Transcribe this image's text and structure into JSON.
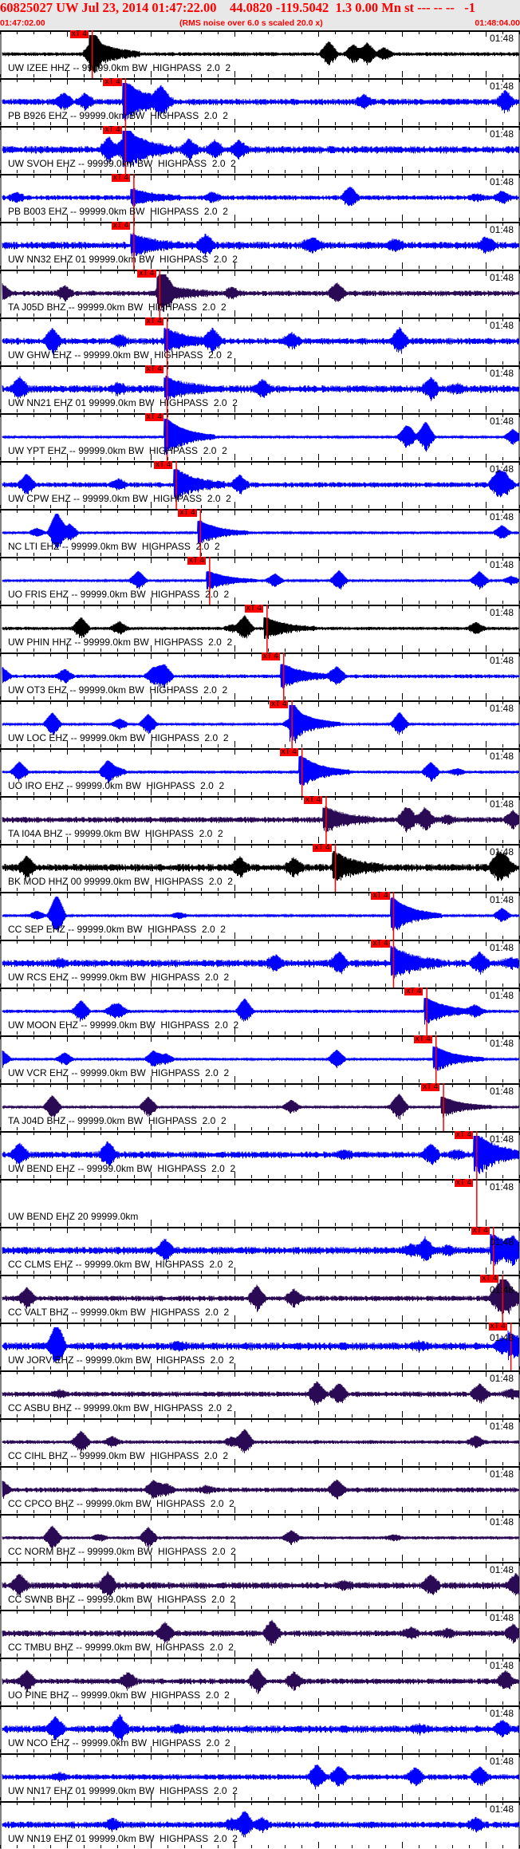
{
  "header": {
    "title": "60825027 UW Jul 23, 2014 01:47:22.00    44.0820 -119.5042  1.3 0.00 Mn st --- -- --   -1",
    "start_time": "01:47:02.00",
    "note": "(RMS noise over 6.0 s scaled 20.0 x)",
    "end_time": "01:48:04.00"
  },
  "axis": {
    "start": "01:47:02.00",
    "end": "01:48:04.00",
    "minute_label": "01:48",
    "minute_time": "01:48:00"
  },
  "colors": {
    "pick": "#ff0000",
    "EHZ": "#0000ff",
    "HHZ": "#000000",
    "BHZ": "#2a0a55",
    "title": "#ff0000"
  },
  "pick_label": "xT 4",
  "traces": [
    {
      "label": "UW IZEE HHZ -- 99999.0km BW  HIGHPASS  2.0  2",
      "color": "#000000",
      "pick": "01:47:12.8"
    },
    {
      "label": "PB B926 EHZ -- 99999.0km BW  HIGHPASS  2.0  2",
      "color": "#0000ff",
      "pick": "01:47:16.8"
    },
    {
      "label": "UW SVOH EHZ -- 99999.0km BW  HIGHPASS  2.0  2",
      "color": "#0000ff",
      "pick": "01:47:16.8"
    },
    {
      "label": "PB B003 EHZ -- 99999.0km BW  HIGHPASS  2.0  2",
      "color": "#0000ff",
      "pick": "01:47:17.8"
    },
    {
      "label": "UW NN32 EHZ 01 99999.0km BW  HIGHPASS  2.0  2",
      "color": "#0000ff",
      "pick": "01:47:17.8"
    },
    {
      "label": "TA J05D BHZ -- 99999.0km BW  HIGHPASS  2.0  2",
      "color": "#2a0a55",
      "pick": "01:47:20.9"
    },
    {
      "label": "UW GHW EHZ -- 99999.0km BW  HIGHPASS  2.0  2",
      "color": "#0000ff",
      "pick": "01:47:21.8"
    },
    {
      "label": "UW NN21 EHZ 01 99999.0km BW  HIGHPASS  2.0  2",
      "color": "#0000ff",
      "pick": "01:47:21.8"
    },
    {
      "label": "UW YPT EHZ -- 99999.0km BW  HIGHPASS  2.0  2",
      "color": "#0000ff",
      "pick": "01:47:21.8"
    },
    {
      "label": "UW CPW EHZ -- 99999.0km BW  HIGHPASS  2.0  2",
      "color": "#0000ff",
      "pick": "01:47:22.9"
    },
    {
      "label": "NC LTI EHZ -- 99999.0km BW  HIGHPASS  2.0  2",
      "color": "#0000ff",
      "pick": "01:47:25.8"
    },
    {
      "label": "UO FRIS EHZ -- 99999.0km BW  HIGHPASS  2.0  2",
      "color": "#0000ff",
      "pick": "01:47:26.9"
    },
    {
      "label": "UW PHIN HHZ -- 99999.0km BW  HIGHPASS  2.0  2",
      "color": "#000000",
      "pick": "01:47:33.8"
    },
    {
      "label": "UW OT3 EHZ -- 99999.0km BW  HIGHPASS  2.0  2",
      "color": "#0000ff",
      "pick": "01:47:35.8"
    },
    {
      "label": "UW LOC EHZ -- 99999.0km BW  HIGHPASS  2.0  2",
      "color": "#0000ff",
      "pick": "01:47:36.8"
    },
    {
      "label": "UO IRO EHZ -- 99999.0km BW  HIGHPASS  2.0  2",
      "color": "#0000ff",
      "pick": "01:47:38.0"
    },
    {
      "label": "TA I04A BHZ -- 99999.0km BW  HIGHPASS  2.0  2",
      "color": "#2a0a55",
      "pick": "01:47:40.9"
    },
    {
      "label": "BK MOD HHZ 00 99999.0km BW  HIGHPASS  2.0  2",
      "color": "#000000",
      "pick": "01:47:42.0"
    },
    {
      "label": "CC SEP EHZ -- 99999.0km BW  HIGHPASS  2.0  2",
      "color": "#0000ff",
      "pick": "01:47:49.0"
    },
    {
      "label": "UW RCS EHZ -- 99999.0km BW  HIGHPASS  2.0  2",
      "color": "#0000ff",
      "pick": "01:47:49.0"
    },
    {
      "label": "UW MOON EHZ -- 99999.0km BW  HIGHPASS  2.0  2",
      "color": "#0000ff",
      "pick": "01:47:53.0"
    },
    {
      "label": "UW VCR EHZ -- 99999.0km BW  HIGHPASS  2.0  2",
      "color": "#0000ff",
      "pick": "01:47:54.1"
    },
    {
      "label": "TA J04D BHZ -- 99999.0km BW  HIGHPASS  2.0  2",
      "color": "#2a0a55",
      "pick": "01:47:55.0"
    },
    {
      "label": "UW BEND EHZ -- 99999.0km BW  HIGHPASS  2.0  2",
      "color": "#0000ff",
      "pick": "01:47:59.0"
    },
    {
      "label": "UW BEND EHZ 20 99999.0km",
      "color": "",
      "pick": "01:47:59.0"
    },
    {
      "label": "CC CLMS EHZ -- 99999.0km BW  HIGHPASS  2.0  2",
      "color": "#0000ff",
      "pick": "01:48:01.0"
    },
    {
      "label": "CC VALT BHZ -- 99999.0km BW  HIGHPASS  2.0  2",
      "color": "#2a0a55",
      "pick": "01:48:02.1"
    },
    {
      "label": "UW JORV EHZ -- 99999.0km BW  HIGHPASS  2.0  2",
      "color": "#0000ff",
      "pick": "01:48:03.1"
    },
    {
      "label": "CC ASBU BHZ -- 99999.0km BW  HIGHPASS  2.0  2",
      "color": "#2a0a55",
      "pick": ""
    },
    {
      "label": "CC CIHL BHZ -- 99999.0km BW  HIGHPASS  2.0  2",
      "color": "#2a0a55",
      "pick": ""
    },
    {
      "label": "CC CPCO BHZ -- 99999.0km BW  HIGHPASS  2.0  2",
      "color": "#2a0a55",
      "pick": ""
    },
    {
      "label": "CC NORM BHZ -- 99999.0km BW  HIGHPASS  2.0  2",
      "color": "#2a0a55",
      "pick": ""
    },
    {
      "label": "CC SWNB BHZ -- 99999.0km BW  HIGHPASS  2.0  2",
      "color": "#2a0a55",
      "pick": ""
    },
    {
      "label": "CC TMBU BHZ -- 99999.0km BW  HIGHPASS  2.0  2",
      "color": "#2a0a55",
      "pick": ""
    },
    {
      "label": "UO PINE BHZ -- 99999.0km BW  HIGHPASS  2.0  2",
      "color": "#2a0a55",
      "pick": ""
    },
    {
      "label": "UW NCO EHZ -- 99999.0km BW  HIGHPASS  2.0  2",
      "color": "#0000ff",
      "pick": ""
    },
    {
      "label": "UW NN17 EHZ 01 99999.0km BW  HIGHPASS  2.0  2",
      "color": "#0000ff",
      "pick": ""
    },
    {
      "label": "UW NN19 EHZ 01 99999.0km BW  HIGHPASS  2.0  2",
      "color": "#0000ff",
      "pick": ""
    }
  ]
}
